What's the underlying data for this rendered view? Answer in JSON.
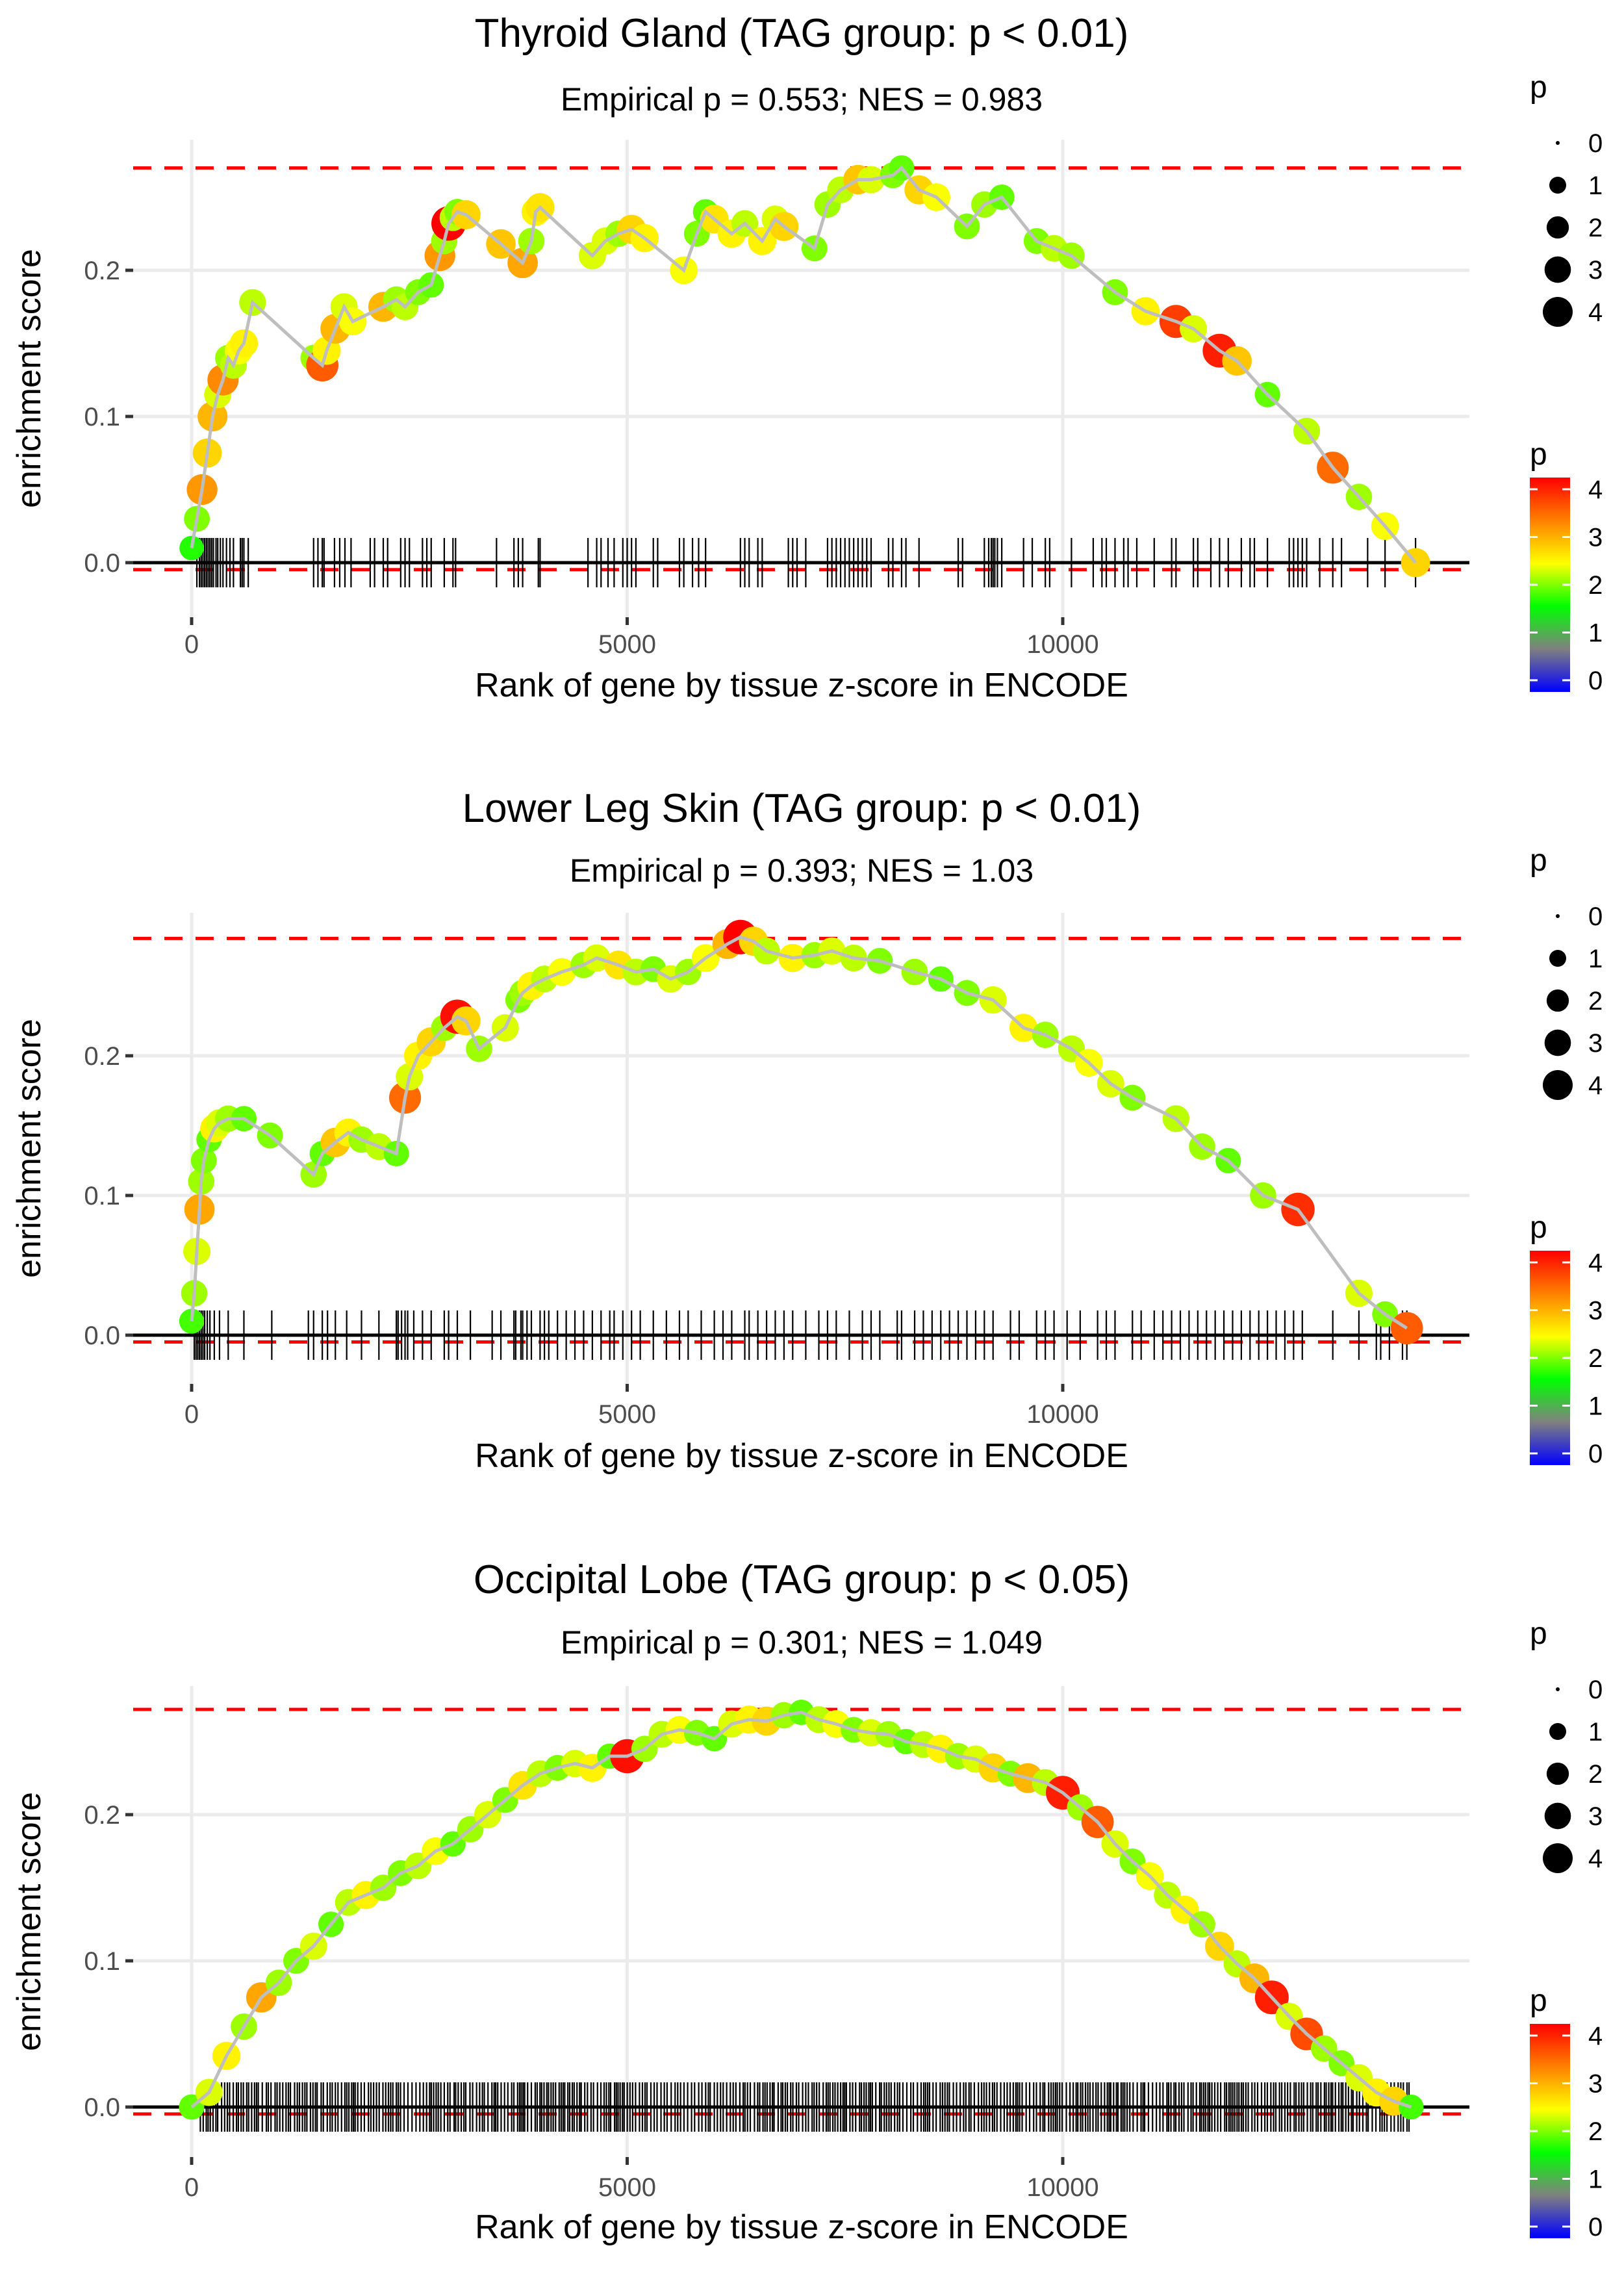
{
  "legend": {
    "size_title": "p",
    "size_breaks": [
      "0",
      "1",
      "2",
      "3",
      "4"
    ],
    "color_title": "p",
    "color_breaks": [
      "4",
      "3",
      "2",
      "1",
      "0"
    ],
    "color_scale": [
      "#0000ff",
      "#808080",
      "#00ff00",
      "#ffff00",
      "#ff8000",
      "#ff0000"
    ]
  },
  "chart_data": [
    {
      "type": "line",
      "title": "Thyroid Gland (TAG group: p < 0.01)",
      "subtitle": "Empirical p = 0.553; NES = 0.983",
      "xlabel": "Rank of gene by tissue z-score in ENCODE",
      "ylabel": "enrichment score",
      "xticks": [
        0,
        5000,
        10000
      ],
      "xtick_labels": [
        "0",
        "5000",
        "10000"
      ],
      "yticks": [
        0.0,
        0.1,
        0.2
      ],
      "ytick_labels": [
        "0.0",
        "0.1",
        "0.2"
      ],
      "xlim": [
        -700,
        14750
      ],
      "ylim": [
        -0.035,
        0.29
      ],
      "max_es_line": 0.27,
      "min_es_line": -0.003,
      "grid": true,
      "legend_position": "right",
      "series": [
        {
          "name": "running enrichment score",
          "x": [
            0,
            60,
            120,
            180,
            240,
            300,
            360,
            420,
            480,
            540,
            600,
            700,
            1400,
            1500,
            1550,
            1650,
            1750,
            1850,
            2200,
            2350,
            2450,
            2600,
            2750,
            2850,
            2900,
            2950,
            3000,
            3050,
            3150,
            3550,
            3800,
            3900,
            3950,
            4000,
            4600,
            4750,
            4900,
            5050,
            5200,
            5650,
            5800,
            5900,
            6000,
            6200,
            6350,
            6550,
            6700,
            6800,
            7150,
            7300,
            7450,
            7650,
            7800,
            8050,
            8150,
            8350,
            8550,
            8900,
            9100,
            9300,
            9700,
            9900,
            10100,
            10600,
            10950,
            11300,
            11500,
            11800,
            12000,
            12350,
            12800,
            13100,
            13400,
            13700,
            14050
          ],
          "y": [
            0.01,
            0.03,
            0.05,
            0.075,
            0.1,
            0.115,
            0.125,
            0.14,
            0.135,
            0.145,
            0.15,
            0.178,
            0.14,
            0.135,
            0.145,
            0.16,
            0.175,
            0.165,
            0.175,
            0.18,
            0.175,
            0.185,
            0.19,
            0.21,
            0.22,
            0.232,
            0.236,
            0.24,
            0.238,
            0.218,
            0.205,
            0.22,
            0.24,
            0.243,
            0.21,
            0.22,
            0.225,
            0.228,
            0.222,
            0.2,
            0.225,
            0.24,
            0.235,
            0.225,
            0.232,
            0.22,
            0.235,
            0.23,
            0.215,
            0.245,
            0.255,
            0.262,
            0.262,
            0.265,
            0.27,
            0.255,
            0.25,
            0.23,
            0.245,
            0.25,
            0.22,
            0.215,
            0.21,
            0.185,
            0.172,
            0.165,
            0.16,
            0.145,
            0.138,
            0.115,
            0.09,
            0.065,
            0.045,
            0.025,
            0.0
          ],
          "p": [
            1.8,
            2.1,
            3.2,
            2.8,
            3.0,
            2.4,
            3.3,
            2.2,
            2.3,
            2.5,
            2.6,
            2.3,
            2.2,
            3.6,
            2.6,
            3.0,
            2.4,
            2.5,
            3.0,
            2.2,
            2.3,
            2.1,
            2.0,
            3.2,
            2.2,
            4.2,
            2.3,
            2.1,
            2.8,
            2.9,
            3.1,
            2.2,
            2.6,
            2.7,
            2.4,
            2.4,
            2.2,
            2.8,
            2.6,
            2.5,
            2.1,
            2.0,
            2.7,
            2.6,
            2.3,
            2.6,
            2.4,
            2.8,
            2.1,
            2.2,
            2.3,
            2.9,
            2.4,
            2.1,
            2.0,
            2.8,
            2.5,
            2.1,
            2.2,
            2.0,
            2.1,
            2.3,
            2.2,
            2.1,
            2.6,
            3.8,
            2.4,
            4.0,
            2.9,
            2.0,
            2.3,
            3.5,
            2.2,
            2.5,
            2.8
          ]
        }
      ],
      "gene_ranks": [
        60,
        90,
        110,
        130,
        150,
        170,
        190,
        210,
        230,
        250,
        280,
        300,
        330,
        360,
        400,
        440,
        480,
        560,
        580,
        600,
        650,
        1400,
        1450,
        1500,
        1520,
        1640,
        1700,
        1760,
        1830,
        2050,
        2100,
        2200,
        2250,
        2400,
        2450,
        2500,
        2650,
        2700,
        2750,
        2900,
        3000,
        3030,
        3500,
        3700,
        3750,
        3800,
        3980,
        4000,
        4550,
        4650,
        4700,
        4780,
        4850,
        4950,
        5000,
        5050,
        5100,
        5300,
        5350,
        5600,
        5650,
        5750,
        5820,
        5900,
        6300,
        6350,
        6400,
        6500,
        6550,
        6850,
        6900,
        6950,
        7050,
        7300,
        7350,
        7400,
        7450,
        7500,
        7550,
        7600,
        7650,
        7700,
        7750,
        7800,
        8000,
        8050,
        8150,
        8200,
        8350,
        8800,
        8850,
        9100,
        9150,
        9180,
        9200,
        9220,
        9250,
        9300,
        9550,
        9650,
        9800,
        9850,
        10100,
        10350,
        10450,
        10500,
        10600,
        10700,
        10750,
        10850,
        11050,
        11250,
        11300,
        11500,
        11550,
        11700,
        11800,
        11900,
        12050,
        12150,
        12200,
        12350,
        12600,
        12650,
        12700,
        12750,
        12800,
        12950,
        13100,
        13200,
        13500,
        13700,
        14050
      ]
    },
    {
      "type": "line",
      "title": "Lower Leg Skin (TAG group: p < 0.01)",
      "subtitle": "Empirical p = 0.393; NES = 1.03",
      "xlabel": "Rank of gene by tissue z-score in ENCODE",
      "ylabel": "enrichment score",
      "xticks": [
        0,
        5000,
        10000
      ],
      "xtick_labels": [
        "0",
        "5000",
        "10000"
      ],
      "yticks": [
        0.0,
        0.1,
        0.2
      ],
      "ytick_labels": [
        "0.0",
        "0.1",
        "0.2"
      ],
      "xlim": [
        -700,
        14750
      ],
      "ylim": [
        -0.035,
        0.3
      ],
      "max_es_line": 0.284,
      "min_es_line": -0.003,
      "grid": true,
      "legend_position": "right",
      "series": [
        {
          "name": "running enrichment score",
          "x": [
            0,
            30,
            60,
            90,
            110,
            140,
            200,
            260,
            320,
            420,
            600,
            900,
            1400,
            1500,
            1650,
            1800,
            1950,
            2150,
            2350,
            2450,
            2500,
            2600,
            2750,
            2900,
            3050,
            3150,
            3300,
            3600,
            3750,
            3800,
            3900,
            4050,
            4250,
            4500,
            4650,
            4900,
            5100,
            5300,
            5500,
            5700,
            5900,
            6150,
            6300,
            6450,
            6600,
            6900,
            7150,
            7350,
            7600,
            7900,
            8300,
            8600,
            8900,
            9200,
            9550,
            9800,
            10100,
            10300,
            10550,
            10800,
            11300,
            11600,
            11900,
            12300,
            12700,
            13400,
            13700,
            13950
          ],
          "y": [
            0.01,
            0.03,
            0.06,
            0.09,
            0.11,
            0.125,
            0.14,
            0.148,
            0.152,
            0.155,
            0.155,
            0.143,
            0.115,
            0.13,
            0.138,
            0.145,
            0.14,
            0.135,
            0.13,
            0.17,
            0.185,
            0.2,
            0.21,
            0.22,
            0.228,
            0.225,
            0.205,
            0.22,
            0.24,
            0.245,
            0.25,
            0.255,
            0.26,
            0.265,
            0.27,
            0.265,
            0.26,
            0.262,
            0.255,
            0.26,
            0.27,
            0.28,
            0.285,
            0.282,
            0.275,
            0.27,
            0.272,
            0.275,
            0.27,
            0.268,
            0.26,
            0.255,
            0.245,
            0.24,
            0.22,
            0.215,
            0.205,
            0.195,
            0.18,
            0.17,
            0.155,
            0.135,
            0.125,
            0.1,
            0.09,
            0.03,
            0.015,
            0.005
          ],
          "p": [
            1.9,
            2.2,
            2.4,
            3.1,
            2.2,
            2.1,
            2.0,
            2.6,
            2.4,
            2.2,
            2.0,
            2.1,
            2.2,
            2.0,
            2.9,
            2.6,
            2.2,
            2.3,
            2.0,
            3.5,
            2.4,
            2.6,
            2.8,
            2.2,
            4.1,
            2.8,
            2.2,
            2.4,
            2.1,
            2.2,
            2.6,
            2.3,
            2.5,
            2.2,
            2.4,
            2.7,
            2.3,
            2.1,
            2.4,
            2.2,
            2.5,
            3.0,
            4.2,
            2.8,
            2.3,
            2.6,
            2.2,
            2.4,
            2.3,
            2.1,
            2.2,
            2.0,
            2.1,
            2.4,
            2.6,
            2.2,
            2.3,
            2.5,
            2.4,
            2.1,
            2.3,
            2.2,
            2.0,
            2.2,
            3.9,
            2.4,
            2.1,
            3.6
          ]
        }
      ],
      "gene_ranks": [
        30,
        50,
        70,
        90,
        110,
        130,
        150,
        180,
        210,
        260,
        320,
        420,
        600,
        920,
        1340,
        1400,
        1500,
        1560,
        1650,
        1780,
        1950,
        2150,
        2350,
        2370,
        2410,
        2450,
        2480,
        2550,
        2650,
        2750,
        2900,
        2950,
        3050,
        3200,
        3450,
        3550,
        3700,
        3720,
        3780,
        3800,
        3850,
        3900,
        4000,
        4050,
        4100,
        4200,
        4300,
        4400,
        4500,
        4600,
        4700,
        4800,
        4850,
        4950,
        5050,
        5150,
        5300,
        5450,
        5600,
        5700,
        5850,
        6000,
        6100,
        6200,
        6350,
        6400,
        6500,
        6600,
        6700,
        6800,
        6900,
        7050,
        7200,
        7300,
        7400,
        7550,
        7700,
        7800,
        7900,
        8100,
        8150,
        8300,
        8400,
        8500,
        8600,
        8700,
        8800,
        8900,
        9000,
        9100,
        9200,
        9400,
        9500,
        9700,
        9800,
        9900,
        10050,
        10200,
        10400,
        10500,
        10600,
        10800,
        10900,
        11050,
        11150,
        11250,
        11350,
        11450,
        11550,
        11650,
        11750,
        11850,
        11950,
        12050,
        12150,
        12250,
        12350,
        12450,
        12550,
        12650,
        12750,
        13100,
        13400,
        13600,
        13650,
        13750,
        13900,
        13950
      ]
    },
    {
      "type": "line",
      "title": "Occipital Lobe (TAG group: p < 0.05)",
      "subtitle": "Empirical p = 0.301; NES = 1.049",
      "xlabel": "Rank of gene by tissue z-score in ENCODE",
      "ylabel": "enrichment score",
      "xticks": [
        0,
        5000,
        10000
      ],
      "xtick_labels": [
        "0",
        "5000",
        "10000"
      ],
      "yticks": [
        0.0,
        0.1,
        0.2
      ],
      "ytick_labels": [
        "0.0",
        "0.1",
        "0.2"
      ],
      "xlim": [
        -700,
        14750
      ],
      "ylim": [
        -0.035,
        0.29
      ],
      "max_es_line": 0.272,
      "min_es_line": -0.003,
      "grid": true,
      "legend_position": "right",
      "series": [
        {
          "name": "running enrichment score",
          "x": [
            0,
            200,
            400,
            600,
            800,
            1000,
            1200,
            1400,
            1600,
            1800,
            2000,
            2200,
            2400,
            2600,
            2800,
            3000,
            3200,
            3400,
            3600,
            3800,
            4000,
            4200,
            4400,
            4600,
            4800,
            5000,
            5200,
            5400,
            5600,
            5800,
            6000,
            6200,
            6400,
            6600,
            6800,
            7000,
            7200,
            7400,
            7600,
            7800,
            8000,
            8200,
            8400,
            8600,
            8800,
            9000,
            9200,
            9400,
            9600,
            9800,
            10000,
            10200,
            10400,
            10600,
            10800,
            11000,
            11200,
            11400,
            11600,
            11800,
            12000,
            12200,
            12400,
            12600,
            12800,
            13000,
            13200,
            13400,
            13600,
            13800,
            14000
          ],
          "y": [
            0.0,
            0.01,
            0.035,
            0.055,
            0.075,
            0.085,
            0.1,
            0.11,
            0.125,
            0.14,
            0.145,
            0.15,
            0.16,
            0.165,
            0.175,
            0.18,
            0.19,
            0.2,
            0.21,
            0.22,
            0.228,
            0.232,
            0.235,
            0.232,
            0.24,
            0.24,
            0.245,
            0.255,
            0.258,
            0.256,
            0.252,
            0.262,
            0.265,
            0.264,
            0.268,
            0.27,
            0.265,
            0.262,
            0.258,
            0.256,
            0.255,
            0.25,
            0.248,
            0.245,
            0.24,
            0.238,
            0.232,
            0.228,
            0.225,
            0.222,
            0.215,
            0.205,
            0.195,
            0.18,
            0.168,
            0.158,
            0.145,
            0.135,
            0.125,
            0.11,
            0.098,
            0.088,
            0.075,
            0.062,
            0.05,
            0.04,
            0.03,
            0.02,
            0.01,
            0.004,
            0.0
          ],
          "p": [
            2.0,
            2.4,
            2.6,
            2.2,
            3.1,
            2.2,
            2.1,
            2.4,
            2.0,
            2.3,
            2.6,
            2.2,
            2.1,
            2.3,
            2.5,
            2.0,
            2.2,
            2.4,
            2.1,
            2.7,
            2.3,
            2.1,
            2.4,
            2.6,
            2.0,
            4.1,
            2.2,
            2.3,
            2.5,
            2.1,
            2.0,
            2.4,
            2.6,
            2.8,
            2.2,
            2.0,
            2.3,
            2.5,
            2.1,
            2.4,
            2.2,
            2.0,
            2.3,
            2.6,
            2.2,
            2.4,
            2.8,
            2.1,
            3.0,
            2.3,
            4.0,
            2.2,
            3.6,
            2.4,
            2.1,
            2.5,
            2.3,
            2.6,
            2.2,
            2.8,
            2.3,
            3.0,
            4.0,
            2.4,
            3.7,
            2.2,
            2.1,
            2.4,
            2.6,
            2.8,
            1.9
          ]
        }
      ],
      "gene_ranks_density": "dense",
      "gene_ranks_range": [
        100,
        14000
      ]
    }
  ]
}
